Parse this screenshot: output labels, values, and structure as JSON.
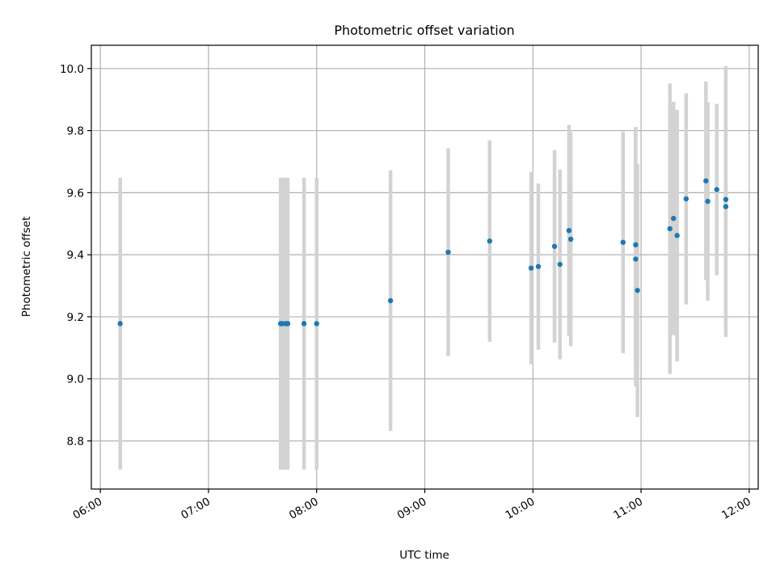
{
  "chart_data": {
    "type": "scatter",
    "title": "Photometric offset variation",
    "xlabel": "UTC time",
    "ylabel": "Photometric offset",
    "xlim": [
      "05:55",
      "12:05"
    ],
    "ylim": [
      8.645,
      10.075
    ],
    "x_ticks": [
      "06:00",
      "07:00",
      "08:00",
      "09:00",
      "10:00",
      "11:00",
      "12:00"
    ],
    "y_ticks": [
      "8.8",
      "9.0",
      "9.2",
      "9.4",
      "9.6",
      "9.8",
      "10.0"
    ],
    "grid": true,
    "marker_color": "#1f77b4",
    "errorbar_color": "#d3d3d3",
    "points": [
      {
        "x": "06:11",
        "y": 9.178,
        "err": 0.47
      },
      {
        "x": "07:40",
        "y": 9.178,
        "err": 0.47
      },
      {
        "x": "07:41",
        "y": 9.178,
        "err": 0.47
      },
      {
        "x": "07:43",
        "y": 9.178,
        "err": 0.47
      },
      {
        "x": "07:44",
        "y": 9.178,
        "err": 0.47
      },
      {
        "x": "07:53",
        "y": 9.178,
        "err": 0.47
      },
      {
        "x": "08:00",
        "y": 9.178,
        "err": 0.47
      },
      {
        "x": "08:41",
        "y": 9.252,
        "err": 0.42
      },
      {
        "x": "09:13",
        "y": 9.408,
        "err": 0.335
      },
      {
        "x": "09:36",
        "y": 9.444,
        "err": 0.325
      },
      {
        "x": "09:59",
        "y": 9.357,
        "err": 0.31
      },
      {
        "x": "10:03",
        "y": 9.362,
        "err": 0.268
      },
      {
        "x": "10:12",
        "y": 9.427,
        "err": 0.31
      },
      {
        "x": "10:15",
        "y": 9.369,
        "err": 0.306
      },
      {
        "x": "10:20",
        "y": 9.478,
        "err": 0.34
      },
      {
        "x": "10:21",
        "y": 9.45,
        "err": 0.345
      },
      {
        "x": "10:50",
        "y": 9.44,
        "err": 0.357
      },
      {
        "x": "10:57",
        "y": 9.432,
        "err": 0.38
      },
      {
        "x": "10:57",
        "y": 9.386,
        "err": 0.41
      },
      {
        "x": "10:58",
        "y": 9.285,
        "err": 0.408
      },
      {
        "x": "11:16",
        "y": 9.484,
        "err": 0.468
      },
      {
        "x": "11:18",
        "y": 9.517,
        "err": 0.376
      },
      {
        "x": "11:20",
        "y": 9.462,
        "err": 0.405
      },
      {
        "x": "11:25",
        "y": 9.58,
        "err": 0.34
      },
      {
        "x": "11:36",
        "y": 9.638,
        "err": 0.32
      },
      {
        "x": "11:37",
        "y": 9.572,
        "err": 0.32
      },
      {
        "x": "11:42",
        "y": 9.61,
        "err": 0.276
      },
      {
        "x": "11:47",
        "y": 9.578,
        "err": 0.43
      },
      {
        "x": "11:47",
        "y": 9.555,
        "err": 0.42
      }
    ]
  }
}
